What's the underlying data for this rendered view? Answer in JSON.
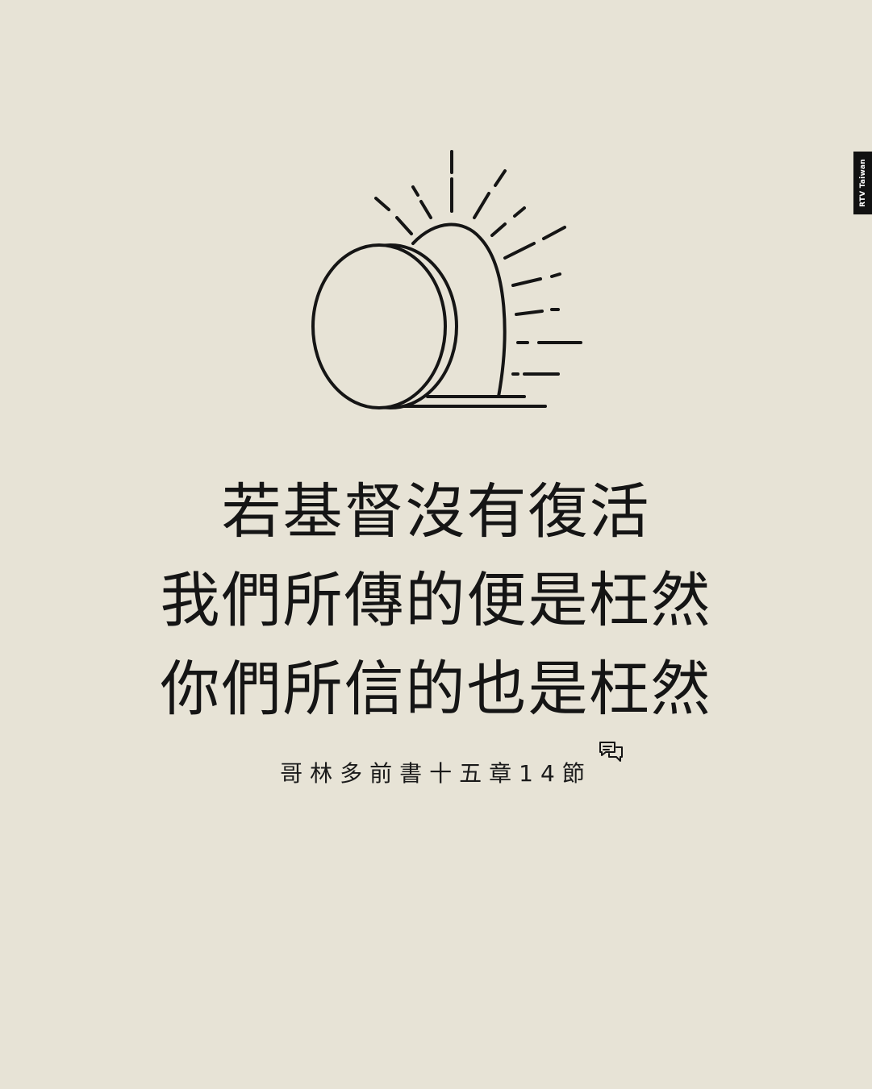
{
  "colors": {
    "background": "#e7e3d6",
    "ink": "#151515",
    "brand_tab": "#111111",
    "brand_text": "#ffffff"
  },
  "illustration": {
    "icon": "empty-tomb-with-rolled-stone-and-sun-rays-icon"
  },
  "verse": {
    "lines": [
      "若基督沒有復活",
      "我們所傳的便是枉然",
      "你們所信的也是枉然"
    ]
  },
  "reference": {
    "text": "哥林多前書十五章14節",
    "icon": "chat-bubbles-icon"
  },
  "brand": {
    "label": "RTV Taiwan"
  }
}
